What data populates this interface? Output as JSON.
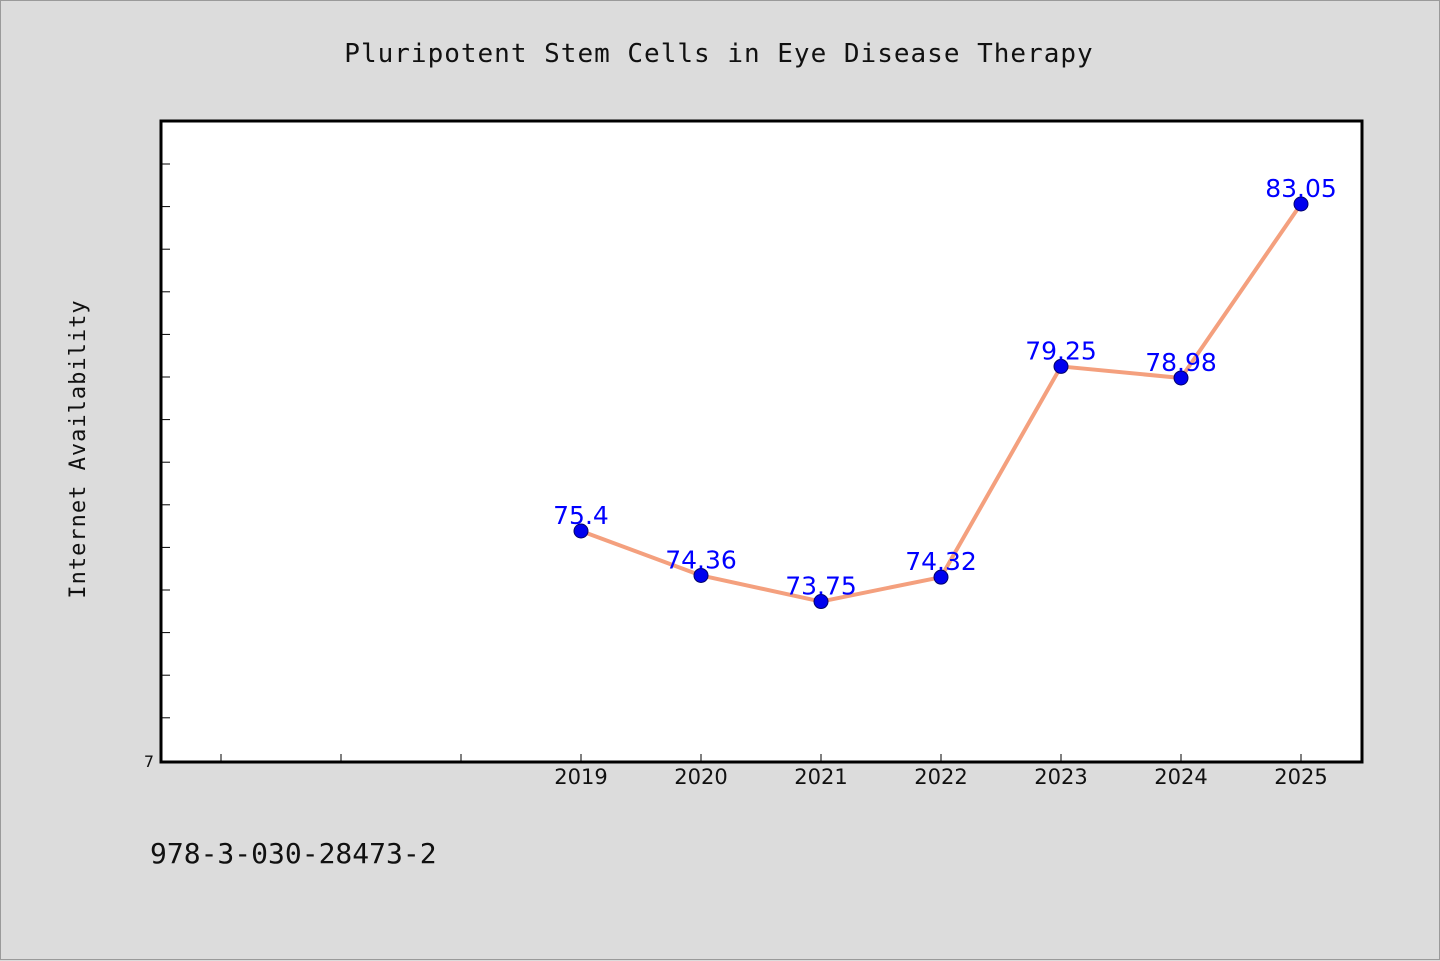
{
  "chart_data": {
    "type": "line",
    "title": "Pluripotent Stem Cells in Eye Disease Therapy",
    "xlabel": "",
    "ylabel": "Internet Availability",
    "categories": [
      "2019",
      "2020",
      "2021",
      "2022",
      "2023",
      "2024",
      "2025"
    ],
    "series": [
      {
        "values": [
          75.4,
          74.36,
          73.75,
          74.32,
          79.25,
          78.98,
          83.05
        ]
      }
    ],
    "data_labels": [
      "75.4",
      "74.36",
      "73.75",
      "74.32",
      "79.25",
      "78.98",
      "83.05"
    ],
    "y_tick_label": "7",
    "grid": false,
    "line_color": "#f4a07e",
    "marker_color": "#0000ee",
    "label_color": "#0000ff"
  },
  "footer": {
    "text": "978-3-030-28473-2"
  }
}
